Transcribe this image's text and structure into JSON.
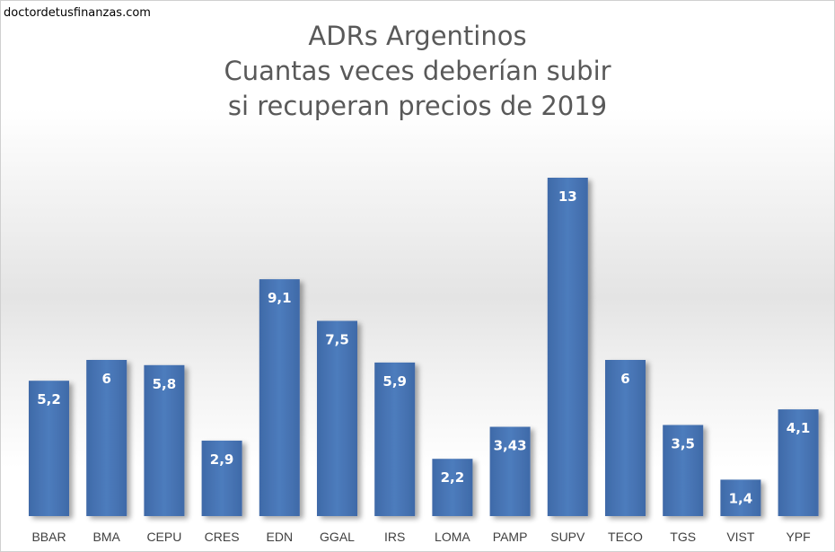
{
  "watermark": "doctordetusfinanzas.com",
  "title_lines": [
    "ADRs Argentinos",
    "Cuantas veces deberían subir",
    "si recuperan precios de 2019"
  ],
  "chart_data": {
    "type": "bar",
    "title": "ADRs Argentinos Cuantas veces deberían subir si recuperan precios de 2019",
    "categories": [
      "BBAR",
      "BMA",
      "CEPU",
      "CRES",
      "EDN",
      "GGAL",
      "IRS",
      "LOMA",
      "PAMP",
      "SUPV",
      "TECO",
      "TGS",
      "VIST",
      "YPF"
    ],
    "values": [
      5.2,
      6,
      5.8,
      2.9,
      9.1,
      7.5,
      5.9,
      2.2,
      3.43,
      13,
      6,
      3.5,
      1.4,
      4.1
    ],
    "data_labels": [
      "5,2",
      "6",
      "5,8",
      "2,9",
      "9,1",
      "7,5",
      "5,9",
      "2,2",
      "3,43",
      "13",
      "6",
      "3,5",
      "1,4",
      "4,1"
    ],
    "xlabel": "",
    "ylabel": "",
    "ylim": [
      0,
      13
    ],
    "grid": false,
    "legend": "none",
    "bar_color": "#4a78b8"
  }
}
